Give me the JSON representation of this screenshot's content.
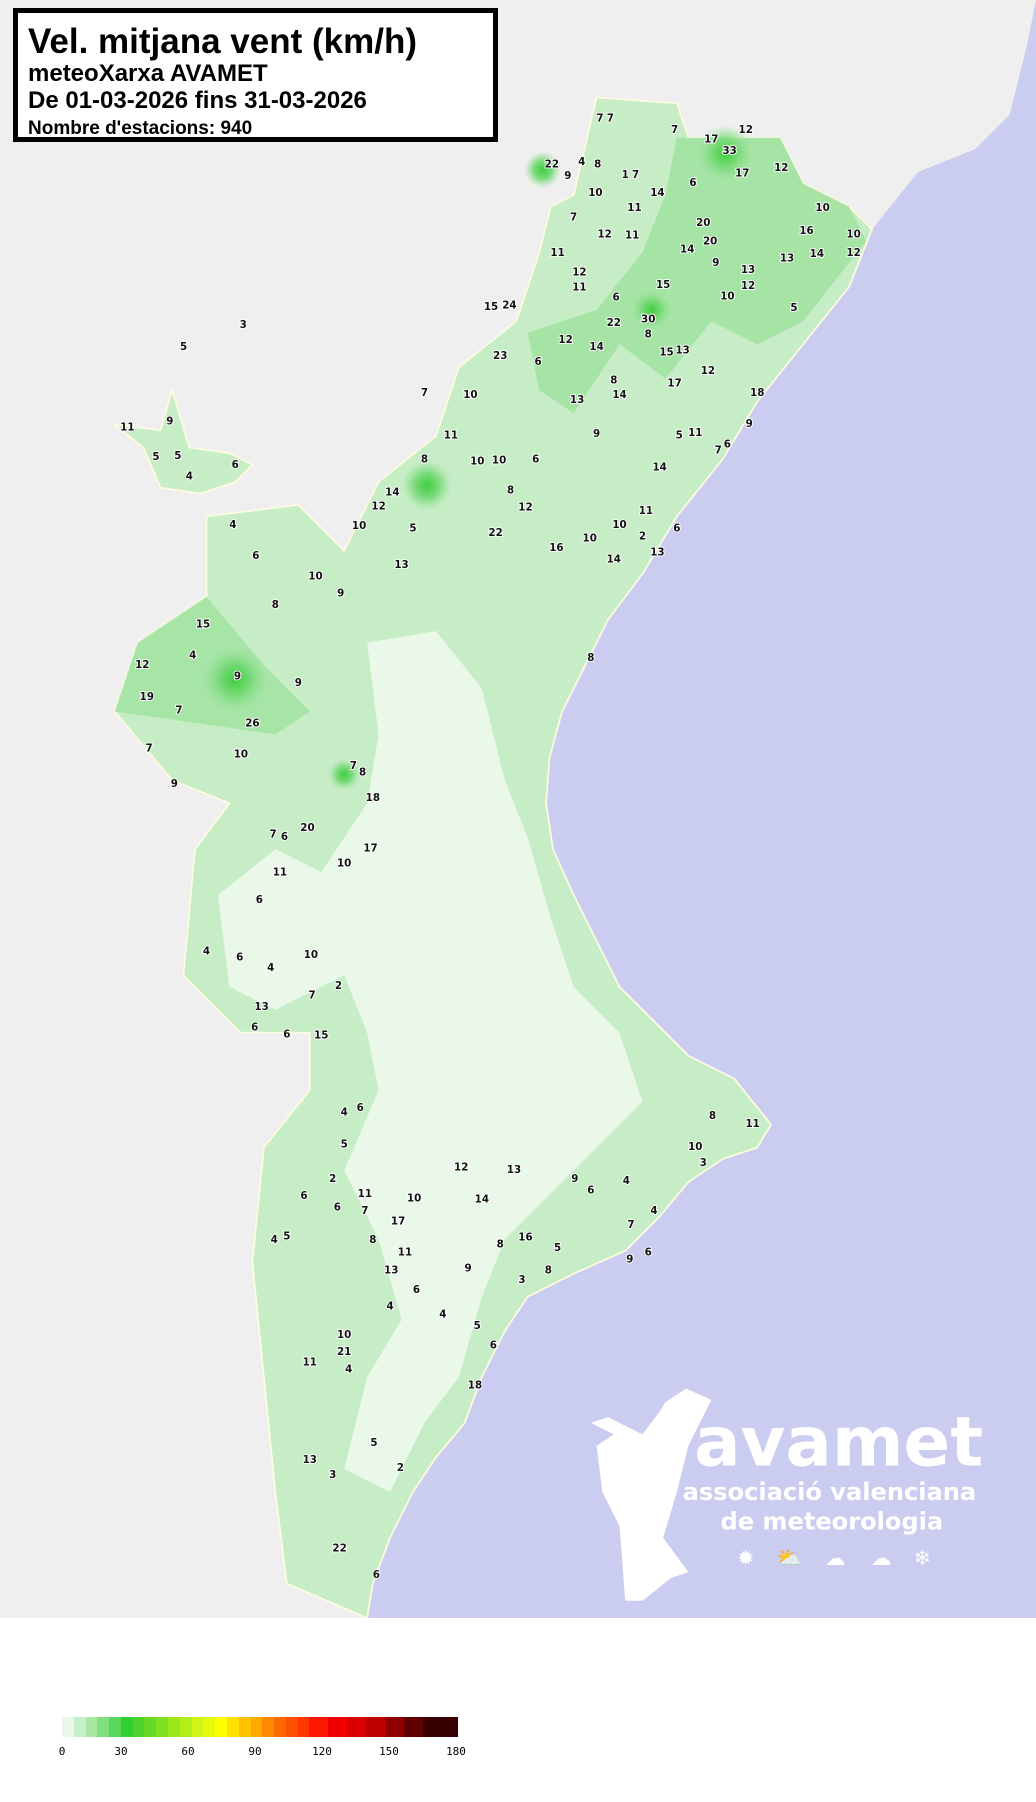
{
  "title": {
    "main": "Vel. mitjana vent (km/h)",
    "network": "meteoXarxa AVAMET",
    "period": "De 01-03-2026 fins 31-03-2026",
    "stations_count": "Nombre d'estacions: 940"
  },
  "colors": {
    "sea": "#cbcdf0",
    "outside_land": "#efefef",
    "region_base": "#c6edc6",
    "region_light": "#e9f8e9",
    "region_dark": "#9fe29f",
    "border": "#fffbe0"
  },
  "logo": {
    "name": "avamet",
    "line1": "associació valenciana",
    "line2": "de meteorologia",
    "icons": [
      "sun-icon",
      "sun-cloud-icon",
      "rain-cloud-icon",
      "storm-cloud-icon",
      "snowflake-icon"
    ]
  },
  "legend": {
    "unit": "km/h",
    "ticks": [
      "0",
      "30",
      "60",
      "90",
      "120",
      "150",
      "180"
    ],
    "colors": [
      "#eaf8ea",
      "#c8f0c8",
      "#a8e8a4",
      "#80e080",
      "#5ad65a",
      "#32cd32",
      "#4cd22c",
      "#66d926",
      "#80e020",
      "#9ae81c",
      "#b4ee18",
      "#d0f414",
      "#e8fa0c",
      "#ffff00",
      "#ffe000",
      "#ffc000",
      "#ffa800",
      "#ff8800",
      "#ff6800",
      "#ff5000",
      "#ff3800",
      "#ff1800",
      "#f00000",
      "#d80000",
      "#c00000",
      "#900000",
      "#600000",
      "#380000"
    ]
  },
  "stations": [
    "7",
    "7",
    "12",
    "17",
    "33",
    "17",
    "12",
    "22",
    "4",
    "8",
    "9",
    "1",
    "7",
    "10",
    "14",
    "6",
    "11",
    "7",
    "12",
    "11",
    "11",
    "12",
    "11",
    "6",
    "15",
    "20",
    "14",
    "20",
    "9",
    "13",
    "12",
    "16",
    "10",
    "10",
    "14",
    "13",
    "10",
    "12",
    "5",
    "22",
    "30",
    "8",
    "13",
    "6",
    "8",
    "14",
    "15",
    "12",
    "10",
    "13",
    "17",
    "12",
    "9",
    "14",
    "15",
    "7",
    "3",
    "5",
    "24",
    "23",
    "11",
    "9",
    "5",
    "5",
    "4",
    "6",
    "7",
    "10",
    "8",
    "11",
    "8",
    "6",
    "12",
    "14",
    "13",
    "10",
    "9",
    "8",
    "10",
    "4",
    "6",
    "9",
    "26",
    "7",
    "9",
    "19",
    "4",
    "12",
    "15",
    "10",
    "7",
    "9",
    "7",
    "7",
    "8",
    "18",
    "20",
    "6",
    "17",
    "5",
    "22",
    "10",
    "12",
    "16",
    "10",
    "11",
    "14",
    "11",
    "5",
    "6",
    "9",
    "7",
    "18",
    "10",
    "2",
    "6",
    "13",
    "14",
    "10",
    "11",
    "8",
    "6",
    "6",
    "4",
    "4",
    "10",
    "7",
    "2",
    "6",
    "13",
    "15",
    "6",
    "4",
    "6",
    "2",
    "6",
    "7",
    "5",
    "4",
    "6",
    "8",
    "11",
    "17",
    "10",
    "5",
    "12",
    "14",
    "13",
    "6",
    "4",
    "7",
    "9",
    "16",
    "5",
    "4",
    "3",
    "8",
    "11",
    "10",
    "9",
    "6",
    "8",
    "3",
    "6",
    "5",
    "4",
    "4",
    "11",
    "13",
    "22",
    "21",
    "18",
    "10",
    "6",
    "9",
    "8",
    "11",
    "13",
    "3",
    "2",
    "5",
    "4",
    "6"
  ]
}
